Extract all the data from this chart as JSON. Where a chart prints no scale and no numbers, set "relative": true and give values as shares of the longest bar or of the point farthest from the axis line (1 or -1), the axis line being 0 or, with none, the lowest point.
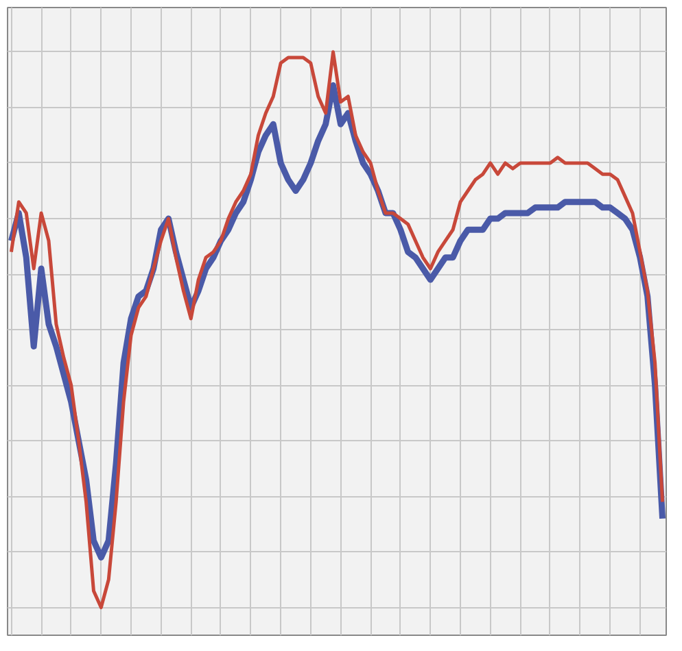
{
  "chart_data": {
    "type": "line",
    "relative": true,
    "grid": true,
    "line_style": "solid",
    "categories": [
      null,
      null,
      null,
      null,
      null,
      null,
      null,
      null,
      null,
      null,
      null,
      null,
      null,
      null,
      null,
      null,
      null,
      null,
      null,
      null,
      null,
      null,
      null,
      null,
      null,
      null,
      null,
      null,
      null,
      null,
      null,
      null,
      null,
      null,
      null,
      null,
      null,
      null,
      null,
      null,
      null,
      null,
      null,
      null,
      null,
      null,
      null,
      null,
      null,
      null,
      null,
      null,
      null,
      null,
      null,
      null,
      null,
      null,
      null,
      null,
      null,
      null,
      null,
      null,
      null,
      null,
      null,
      null,
      null,
      null,
      null,
      null,
      null,
      null,
      null,
      null,
      null,
      null,
      null,
      null,
      null,
      null,
      null,
      null,
      null,
      null,
      null,
      null
    ],
    "series": [
      {
        "color": "#4a5aa8",
        "values": [
          0.66,
          0.71,
          0.63,
          0.47,
          0.61,
          0.51,
          0.47,
          0.42,
          0.37,
          0.3,
          0.23,
          0.12,
          0.09,
          0.12,
          0.26,
          0.44,
          0.52,
          0.56,
          0.57,
          0.61,
          0.68,
          0.7,
          0.64,
          0.59,
          0.54,
          0.57,
          0.61,
          0.63,
          0.66,
          0.68,
          0.71,
          0.73,
          0.77,
          0.82,
          0.85,
          0.87,
          0.8,
          0.77,
          0.75,
          0.77,
          0.8,
          0.84,
          0.87,
          0.94,
          0.87,
          0.89,
          0.84,
          0.8,
          0.78,
          0.75,
          0.71,
          0.71,
          0.68,
          0.64,
          0.63,
          0.61,
          0.59,
          0.61,
          0.63,
          0.63,
          0.66,
          0.68,
          0.68,
          0.68,
          0.7,
          0.7,
          0.71,
          0.71,
          0.71,
          0.71,
          0.72,
          0.72,
          0.72,
          0.72,
          0.73,
          0.73,
          0.73,
          0.73,
          0.73,
          0.72,
          0.72,
          0.71,
          0.7,
          0.68,
          0.63,
          0.56,
          0.4,
          0.16
        ]
      },
      {
        "color": "#c8483a",
        "values": [
          0.64,
          0.73,
          0.71,
          0.61,
          0.71,
          0.66,
          0.51,
          0.45,
          0.4,
          0.3,
          0.19,
          0.03,
          0,
          0.05,
          0.19,
          0.37,
          0.49,
          0.54,
          0.56,
          0.61,
          0.66,
          0.7,
          0.63,
          0.57,
          0.52,
          0.59,
          0.63,
          0.64,
          0.66,
          0.7,
          0.73,
          0.75,
          0.78,
          0.85,
          0.89,
          0.92,
          0.98,
          0.99,
          0.99,
          0.99,
          0.98,
          0.92,
          0.89,
          1,
          0.91,
          0.92,
          0.85,
          0.82,
          0.8,
          0.75,
          0.71,
          0.71,
          0.7,
          0.69,
          0.66,
          0.63,
          0.61,
          0.64,
          0.66,
          0.68,
          0.73,
          0.75,
          0.77,
          0.78,
          0.8,
          0.78,
          0.8,
          0.79,
          0.8,
          0.8,
          0.8,
          0.8,
          0.8,
          0.81,
          0.8,
          0.8,
          0.8,
          0.8,
          0.79,
          0.78,
          0.78,
          0.77,
          0.74,
          0.71,
          0.64,
          0.57,
          0.44,
          0.19
        ]
      }
    ]
  }
}
